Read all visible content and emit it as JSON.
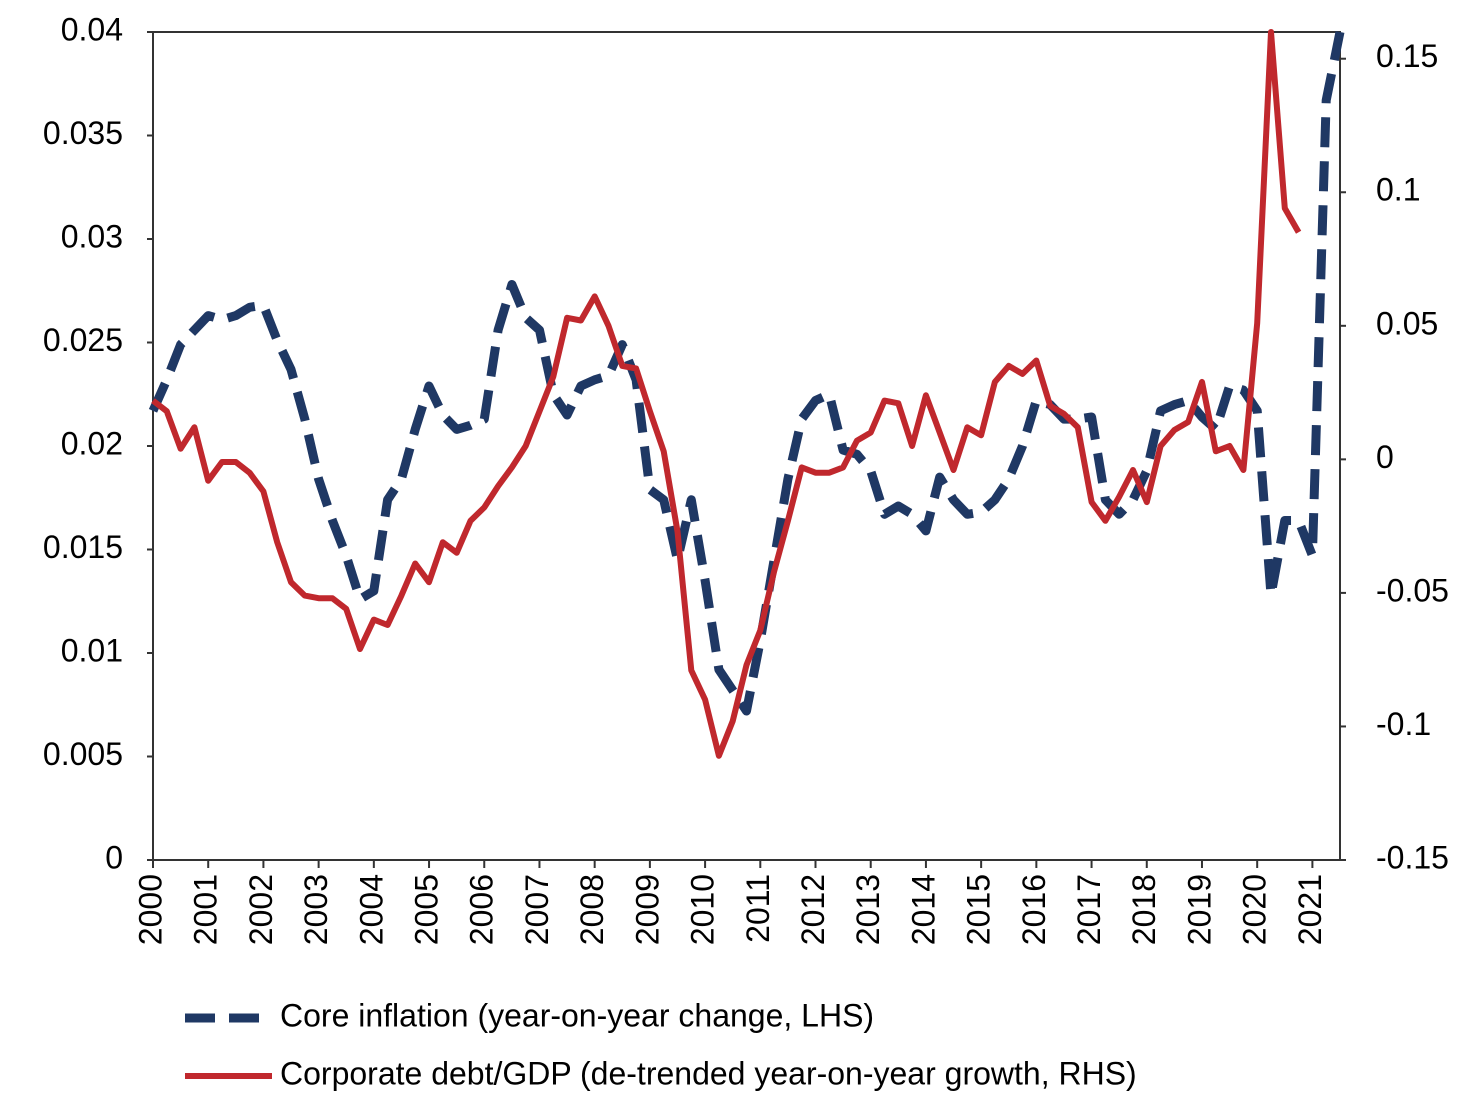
{
  "chart_data": {
    "type": "line",
    "x": [
      2000,
      2000.25,
      2000.5,
      2000.75,
      2001,
      2001.25,
      2001.5,
      2001.75,
      2002,
      2002.25,
      2002.5,
      2002.75,
      2003,
      2003.25,
      2003.5,
      2003.75,
      2004,
      2004.25,
      2004.5,
      2004.75,
      2005,
      2005.25,
      2005.5,
      2005.75,
      2006,
      2006.25,
      2006.5,
      2006.75,
      2007,
      2007.25,
      2007.5,
      2007.75,
      2008,
      2008.25,
      2008.5,
      2008.75,
      2009,
      2009.25,
      2009.5,
      2009.75,
      2010,
      2010.25,
      2010.5,
      2010.75,
      2011,
      2011.25,
      2011.5,
      2011.75,
      2012,
      2012.25,
      2012.5,
      2012.75,
      2013,
      2013.25,
      2013.5,
      2013.75,
      2014,
      2014.25,
      2014.5,
      2014.75,
      2015,
      2015.25,
      2015.5,
      2015.75,
      2016,
      2016.25,
      2016.5,
      2016.75,
      2017,
      2017.25,
      2017.5,
      2017.75,
      2018,
      2018.25,
      2018.5,
      2018.75,
      2019,
      2019.25,
      2019.5,
      2019.75,
      2020,
      2020.25,
      2020.5,
      2020.75,
      2021,
      2021.25,
      2021.5
    ],
    "series": [
      {
        "name": "Core inflation (year-on-year change, LHS)",
        "color": "#1f3864",
        "dashed": true,
        "values": [
          0.0217,
          0.0232,
          0.0249,
          0.0256,
          0.0263,
          0.0261,
          0.0263,
          0.0267,
          0.0268,
          0.0251,
          0.0237,
          0.0213,
          0.0184,
          0.0164,
          0.0147,
          0.0126,
          0.013,
          0.0174,
          0.0184,
          0.0208,
          0.0229,
          0.0215,
          0.0208,
          0.021,
          0.0213,
          0.0256,
          0.0278,
          0.0262,
          0.0256,
          0.0225,
          0.0215,
          0.0229,
          0.0232,
          0.0234,
          0.0249,
          0.0232,
          0.0179,
          0.0174,
          0.0145,
          0.0174,
          0.0135,
          0.0092,
          0.0082,
          0.0072,
          0.0106,
          0.0145,
          0.0184,
          0.0213,
          0.0222,
          0.0225,
          0.0198,
          0.0196,
          0.0188,
          0.0167,
          0.0171,
          0.0167,
          0.0159,
          0.0185,
          0.0174,
          0.0167,
          0.0168,
          0.0174,
          0.0184,
          0.02,
          0.0222,
          0.022,
          0.0213,
          0.0213,
          0.0214,
          0.0174,
          0.0167,
          0.0174,
          0.0188,
          0.0217,
          0.022,
          0.0222,
          0.0214,
          0.0208,
          0.0229,
          0.0227,
          0.0217,
          0.0128,
          0.0164,
          0.0164,
          0.0147,
          0.0367,
          0.04
        ]
      },
      {
        "name": "Corporate debt/GDP (de-trended year-on-year growth, RHS)",
        "color": "#c0282d",
        "dashed": false,
        "axis": "y2",
        "values": [
          0.022,
          0.018,
          0.004,
          0.012,
          -0.008,
          -0.001,
          -0.001,
          -0.005,
          -0.012,
          -0.031,
          -0.046,
          -0.051,
          -0.052,
          -0.052,
          -0.056,
          -0.071,
          -0.06,
          -0.062,
          -0.051,
          -0.039,
          -0.046,
          -0.031,
          -0.035,
          -0.023,
          -0.018,
          -0.01,
          -0.003,
          0.005,
          0.018,
          0.031,
          0.053,
          0.052,
          0.061,
          0.05,
          0.035,
          0.034,
          0.018,
          0.003,
          -0.027,
          -0.079,
          -0.09,
          -0.111,
          -0.098,
          -0.077,
          -0.064,
          -0.042,
          -0.023,
          -0.003,
          -0.005,
          -0.005,
          -0.003,
          0.007,
          0.01,
          0.022,
          0.021,
          0.005,
          0.024,
          0.01,
          -0.004,
          0.012,
          0.009,
          0.029,
          0.035,
          0.032,
          0.037,
          0.02,
          0.017,
          0.012,
          -0.016,
          -0.023,
          -0.014,
          -0.004,
          -0.016,
          0.005,
          0.011,
          0.014,
          0.029,
          0.003,
          0.005,
          -0.004,
          0.051,
          0.16,
          0.094,
          0.085,
          null,
          null,
          null
        ]
      }
    ],
    "xlim": [
      2000,
      2021.5
    ],
    "xticks": [
      2000,
      2001,
      2002,
      2003,
      2004,
      2005,
      2006,
      2007,
      2008,
      2009,
      2010,
      2011,
      2012,
      2013,
      2014,
      2015,
      2016,
      2017,
      2018,
      2019,
      2020,
      2021
    ],
    "ylim": [
      0,
      0.04
    ],
    "yticks": [
      0,
      0.005,
      0.01,
      0.015,
      0.02,
      0.025,
      0.03,
      0.035,
      0.04
    ],
    "y2lim": [
      -0.15,
      0.16
    ],
    "y2ticks": [
      -0.15,
      -0.1,
      -0.05,
      0,
      0.05,
      0.1,
      0.15
    ],
    "grid": false
  }
}
